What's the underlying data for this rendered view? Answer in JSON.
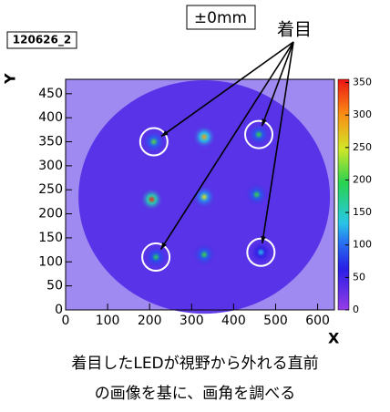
{
  "chart_data": {
    "type": "heatmap",
    "title": "±0mm",
    "histogram_name": "120626_2",
    "annotation": "着目",
    "x_label": "X",
    "y_label": "Y",
    "caption_lines": [
      "着目したLEDが視野から外れる直前",
      "の画像を基に、画角を調べる"
    ],
    "xlim": [
      0,
      640
    ],
    "xticks": [
      0,
      100,
      200,
      300,
      400,
      500,
      600
    ],
    "ylim": [
      0,
      480
    ],
    "yticks": [
      0,
      50,
      100,
      150,
      200,
      250,
      300,
      350,
      400,
      450
    ],
    "zlim": [
      0,
      355
    ],
    "zticks": [
      0,
      50,
      100,
      150,
      200,
      250,
      300,
      350
    ],
    "background": 40,
    "spots": [
      {
        "x": 210,
        "y": 350,
        "value": 210
      },
      {
        "x": 330,
        "y": 360,
        "value": 290
      },
      {
        "x": 460,
        "y": 365,
        "value": 200
      },
      {
        "x": 205,
        "y": 230,
        "value": 345
      },
      {
        "x": 330,
        "y": 235,
        "value": 250
      },
      {
        "x": 455,
        "y": 240,
        "value": 200
      },
      {
        "x": 215,
        "y": 110,
        "value": 190
      },
      {
        "x": 330,
        "y": 115,
        "value": 200
      },
      {
        "x": 465,
        "y": 120,
        "value": 130
      }
    ],
    "highlighted": [
      0,
      2,
      6,
      8
    ]
  }
}
